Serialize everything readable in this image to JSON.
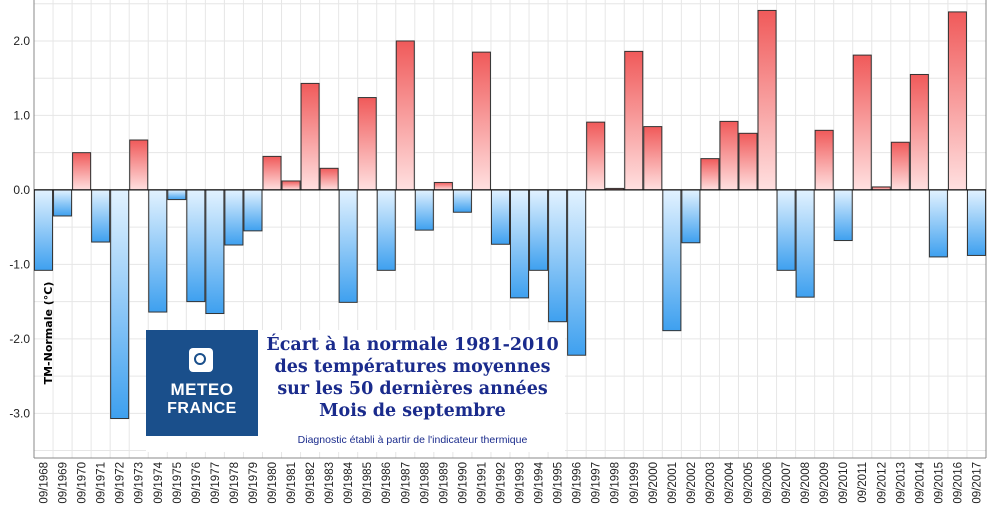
{
  "chart_data": {
    "type": "bar",
    "categories": [
      "09/1968",
      "09/1969",
      "09/1970",
      "09/1971",
      "09/1972",
      "09/1973",
      "09/1974",
      "09/1975",
      "09/1976",
      "09/1977",
      "09/1978",
      "09/1979",
      "09/1980",
      "09/1981",
      "09/1982",
      "09/1983",
      "09/1984",
      "09/1985",
      "09/1986",
      "09/1987",
      "09/1988",
      "09/1989",
      "09/1990",
      "09/1991",
      "09/1992",
      "09/1993",
      "09/1994",
      "09/1995",
      "09/1996",
      "09/1997",
      "09/1998",
      "09/1999",
      "09/2000",
      "09/2001",
      "09/2002",
      "09/2003",
      "09/2004",
      "09/2005",
      "09/2006",
      "09/2007",
      "09/2008",
      "09/2009",
      "09/2010",
      "09/2011",
      "09/2012",
      "09/2013",
      "09/2014",
      "09/2015",
      "09/2016",
      "09/2017"
    ],
    "values": [
      -1.08,
      -0.35,
      0.5,
      -0.7,
      -3.07,
      0.67,
      -1.64,
      -0.13,
      -1.5,
      -1.66,
      -0.74,
      -0.55,
      0.45,
      0.12,
      1.43,
      0.29,
      -1.51,
      1.24,
      -1.08,
      2.0,
      -0.54,
      0.1,
      -0.3,
      1.85,
      -0.73,
      -1.45,
      -1.08,
      -1.77,
      -2.22,
      0.91,
      0.02,
      1.86,
      0.85,
      -1.89,
      -0.71,
      0.42,
      0.92,
      0.76,
      2.41,
      -1.08,
      -1.44,
      0.8,
      -0.68,
      1.81,
      0.04,
      0.64,
      1.55,
      -0.9,
      2.39,
      -0.88
    ],
    "ylabel": "TM-Normale (°C)",
    "ylim": [
      -3.6,
      2.55
    ],
    "yticks": [
      "-3.0",
      "-2.0",
      "-1.0",
      "0.0",
      "1.0",
      "2.0"
    ],
    "grid": true,
    "colors": {
      "positive": "#f05a5a",
      "positive_light": "#ffe0e0",
      "negative": "#3ea0ef",
      "negative_light": "#e2f2ff",
      "zero_line": "#111111",
      "grid": "#e6e6e6"
    }
  },
  "banner": {
    "logo_line1": "METEO",
    "logo_line2": "FRANCE",
    "title_lines": [
      "Écart à la normale 1981-2010",
      "des températures moyennes",
      "sur les 50 dernières années",
      "Mois de septembre"
    ],
    "note": "Diagnostic établi à partir de l'indicateur thermique"
  }
}
